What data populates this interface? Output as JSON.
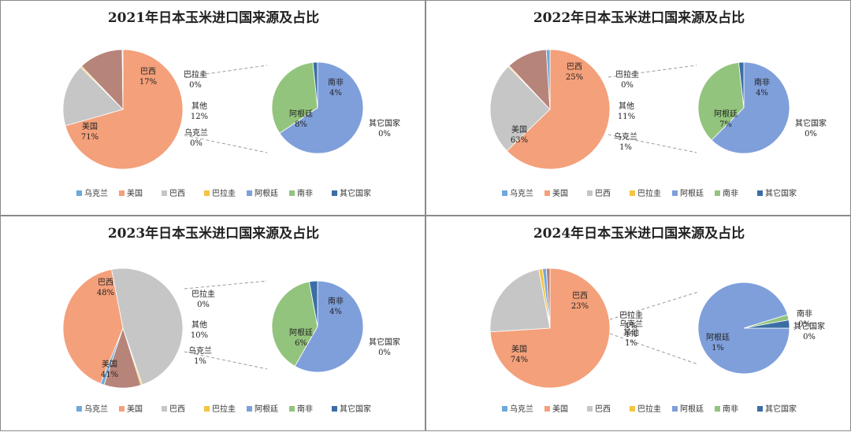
{
  "colors": {
    "乌克兰": "#6FA8DC",
    "美国": "#F4A07A",
    "巴西": "#C6C6C6",
    "巴拉圭": "#F5C344",
    "阿根廷": "#7F9FDB",
    "南非": "#93C47D",
    "其它国家": "#3B6EA5",
    "其他": "#B7847A"
  },
  "legend": [
    "乌克兰",
    "美国",
    "巴西",
    "巴拉圭",
    "阿根廷",
    "南非",
    "其它国家"
  ],
  "chart_data": [
    {
      "type": "pie",
      "title": "2021年日本玉米进口国来源及占比",
      "main": [
        {
          "name": "美国",
          "value": 71,
          "label": "71%"
        },
        {
          "name": "巴西",
          "value": 17,
          "label": "17%"
        },
        {
          "name": "巴拉圭",
          "value": 0.4,
          "label": "0%"
        },
        {
          "name": "其他",
          "value": 12,
          "label": "12%"
        },
        {
          "name": "乌克兰",
          "value": 0.2,
          "label": "0%"
        }
      ],
      "sub": [
        {
          "name": "阿根廷",
          "value": 8,
          "label": "8%"
        },
        {
          "name": "南非",
          "value": 4,
          "label": "4%"
        },
        {
          "name": "其它国家",
          "value": 0.2,
          "label": "0%"
        }
      ]
    },
    {
      "type": "pie",
      "title": "2022年日本玉米进口国来源及占比",
      "main": [
        {
          "name": "美国",
          "value": 63,
          "label": "63%"
        },
        {
          "name": "巴西",
          "value": 25,
          "label": "25%"
        },
        {
          "name": "巴拉圭",
          "value": 0.3,
          "label": "0%"
        },
        {
          "name": "其他",
          "value": 11,
          "label": "11%"
        },
        {
          "name": "乌克兰",
          "value": 1,
          "label": "1%"
        }
      ],
      "sub": [
        {
          "name": "阿根廷",
          "value": 7,
          "label": "7%"
        },
        {
          "name": "南非",
          "value": 4,
          "label": "4%"
        },
        {
          "name": "其它国家",
          "value": 0.2,
          "label": "0%"
        }
      ]
    },
    {
      "type": "pie",
      "title": "2023年日本玉米进口国来源及占比",
      "main": [
        {
          "name": "巴西",
          "value": 48,
          "label": "48%"
        },
        {
          "name": "巴拉圭",
          "value": 0.4,
          "label": "0%"
        },
        {
          "name": "其他",
          "value": 10,
          "label": "10%"
        },
        {
          "name": "乌克兰",
          "value": 1,
          "label": "1%"
        },
        {
          "name": "美国",
          "value": 41,
          "label": "41%"
        }
      ],
      "sub": [
        {
          "name": "阿根廷",
          "value": 6,
          "label": "6%"
        },
        {
          "name": "南非",
          "value": 4,
          "label": "4%"
        },
        {
          "name": "其它国家",
          "value": 0.3,
          "label": "0%"
        }
      ]
    },
    {
      "type": "pie",
      "title": "2024年日本玉米进口国来源及占比",
      "main": [
        {
          "name": "美国",
          "value": 74,
          "label": "74%"
        },
        {
          "name": "巴西",
          "value": 23,
          "label": "23%"
        },
        {
          "name": "巴拉圭",
          "value": 1,
          "label": "1%"
        },
        {
          "name": "乌克兰",
          "value": 1,
          "label": "1%"
        },
        {
          "name": "其他",
          "value": 1,
          "label": "1%"
        }
      ],
      "sub": [
        {
          "name": "阿根廷",
          "value": 1,
          "label": "1%"
        },
        {
          "name": "南非",
          "value": 0.02,
          "label": "0%"
        },
        {
          "name": "其它国家",
          "value": 0.03,
          "label": "0%"
        }
      ]
    }
  ]
}
